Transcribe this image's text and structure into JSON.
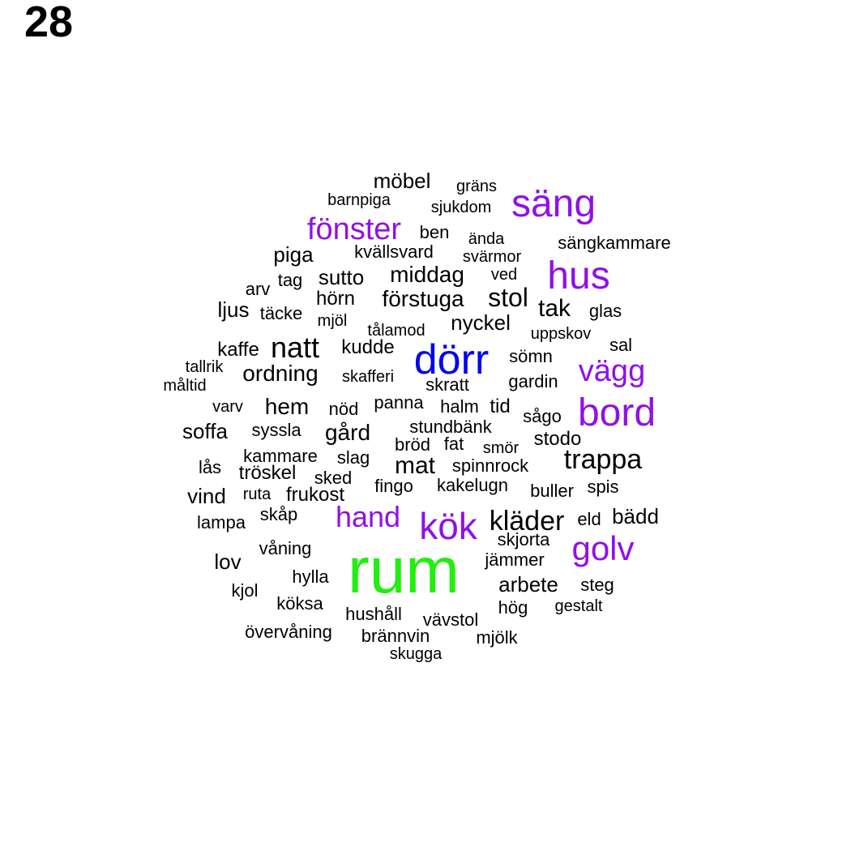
{
  "panel_number": "28",
  "colors": {
    "black": "#000000",
    "purple": "#9010e8",
    "blue": "#0000f0",
    "green": "#22ee11"
  },
  "words": [
    {
      "text": "rum",
      "color": "green"
    },
    {
      "text": "dörr",
      "color": "blue"
    },
    {
      "text": "kök",
      "color": "purple"
    },
    {
      "text": "säng",
      "color": "purple"
    },
    {
      "text": "hus",
      "color": "purple"
    },
    {
      "text": "bord",
      "color": "purple"
    },
    {
      "text": "golv",
      "color": "purple"
    },
    {
      "text": "fönster",
      "color": "purple"
    },
    {
      "text": "vägg",
      "color": "purple"
    },
    {
      "text": "hand",
      "color": "purple"
    },
    {
      "text": "kläder",
      "color": "black"
    },
    {
      "text": "trappa",
      "color": "black"
    },
    {
      "text": "natt",
      "color": "black"
    },
    {
      "text": "stol",
      "color": "black"
    },
    {
      "text": "förstuga",
      "color": "black"
    },
    {
      "text": "middag",
      "color": "black"
    },
    {
      "text": "mat",
      "color": "black"
    },
    {
      "text": "tak",
      "color": "black"
    },
    {
      "text": "ordning",
      "color": "black"
    },
    {
      "text": "hem",
      "color": "black"
    },
    {
      "text": "gård",
      "color": "black"
    },
    {
      "text": "arbete",
      "color": "black"
    },
    {
      "text": "nyckel",
      "color": "black"
    },
    {
      "text": "möbel",
      "color": "black"
    },
    {
      "text": "piga",
      "color": "black"
    },
    {
      "text": "sutto",
      "color": "black"
    },
    {
      "text": "hörn",
      "color": "black"
    },
    {
      "text": "kudde",
      "color": "black"
    },
    {
      "text": "soffa",
      "color": "black"
    },
    {
      "text": "vind",
      "color": "black"
    },
    {
      "text": "lov",
      "color": "black"
    },
    {
      "text": "kvällsvard",
      "color": "black"
    },
    {
      "text": "ljus",
      "color": "black"
    },
    {
      "text": "kaffe",
      "color": "black"
    },
    {
      "text": "sängkammare",
      "color": "black"
    },
    {
      "text": "glas",
      "color": "black"
    },
    {
      "text": "sal",
      "color": "black"
    },
    {
      "text": "bädd",
      "color": "black"
    },
    {
      "text": "frukost",
      "color": "black"
    },
    {
      "text": "kammare",
      "color": "black"
    },
    {
      "text": "tröskel",
      "color": "black"
    },
    {
      "text": "spinnrock",
      "color": "black"
    },
    {
      "text": "kakelugn",
      "color": "black"
    },
    {
      "text": "stundbänk",
      "color": "black"
    },
    {
      "text": "panna",
      "color": "black"
    },
    {
      "text": "halm",
      "color": "black"
    },
    {
      "text": "tid",
      "color": "black"
    },
    {
      "text": "sågo",
      "color": "black"
    },
    {
      "text": "stodo",
      "color": "black"
    },
    {
      "text": "gardin",
      "color": "black"
    },
    {
      "text": "sömn",
      "color": "black"
    },
    {
      "text": "skafferi",
      "color": "black"
    },
    {
      "text": "skratt",
      "color": "black"
    },
    {
      "text": "nöd",
      "color": "black"
    },
    {
      "text": "varv",
      "color": "black"
    },
    {
      "text": "syssla",
      "color": "black"
    },
    {
      "text": "bröd",
      "color": "black"
    },
    {
      "text": "fat",
      "color": "black"
    },
    {
      "text": "smör",
      "color": "black"
    },
    {
      "text": "slag",
      "color": "black"
    },
    {
      "text": "sked",
      "color": "black"
    },
    {
      "text": "lås",
      "color": "black"
    },
    {
      "text": "fingo",
      "color": "black"
    },
    {
      "text": "buller",
      "color": "black"
    },
    {
      "text": "spis",
      "color": "black"
    },
    {
      "text": "ruta",
      "color": "black"
    },
    {
      "text": "skåp",
      "color": "black"
    },
    {
      "text": "lampa",
      "color": "black"
    },
    {
      "text": "eld",
      "color": "black"
    },
    {
      "text": "skjorta",
      "color": "black"
    },
    {
      "text": "jämmer",
      "color": "black"
    },
    {
      "text": "våning",
      "color": "black"
    },
    {
      "text": "hylla",
      "color": "black"
    },
    {
      "text": "kjol",
      "color": "black"
    },
    {
      "text": "köksa",
      "color": "black"
    },
    {
      "text": "hushåll",
      "color": "black"
    },
    {
      "text": "vävstol",
      "color": "black"
    },
    {
      "text": "hög",
      "color": "black"
    },
    {
      "text": "gestalt",
      "color": "black"
    },
    {
      "text": "steg",
      "color": "black"
    },
    {
      "text": "övervåning",
      "color": "black"
    },
    {
      "text": "brännvin",
      "color": "black"
    },
    {
      "text": "mjölk",
      "color": "black"
    },
    {
      "text": "skugga",
      "color": "black"
    },
    {
      "text": "gräns",
      "color": "black"
    },
    {
      "text": "barnpiga",
      "color": "black"
    },
    {
      "text": "sjukdom",
      "color": "black"
    },
    {
      "text": "ben",
      "color": "black"
    },
    {
      "text": "ända",
      "color": "black"
    },
    {
      "text": "svärmor",
      "color": "black"
    },
    {
      "text": "ved",
      "color": "black"
    },
    {
      "text": "tag",
      "color": "black"
    },
    {
      "text": "arv",
      "color": "black"
    },
    {
      "text": "täcke",
      "color": "black"
    },
    {
      "text": "mjöl",
      "color": "black"
    },
    {
      "text": "tålamod",
      "color": "black"
    },
    {
      "text": "uppskov",
      "color": "black"
    },
    {
      "text": "tallrik",
      "color": "black"
    },
    {
      "text": "måltid",
      "color": "black"
    }
  ]
}
